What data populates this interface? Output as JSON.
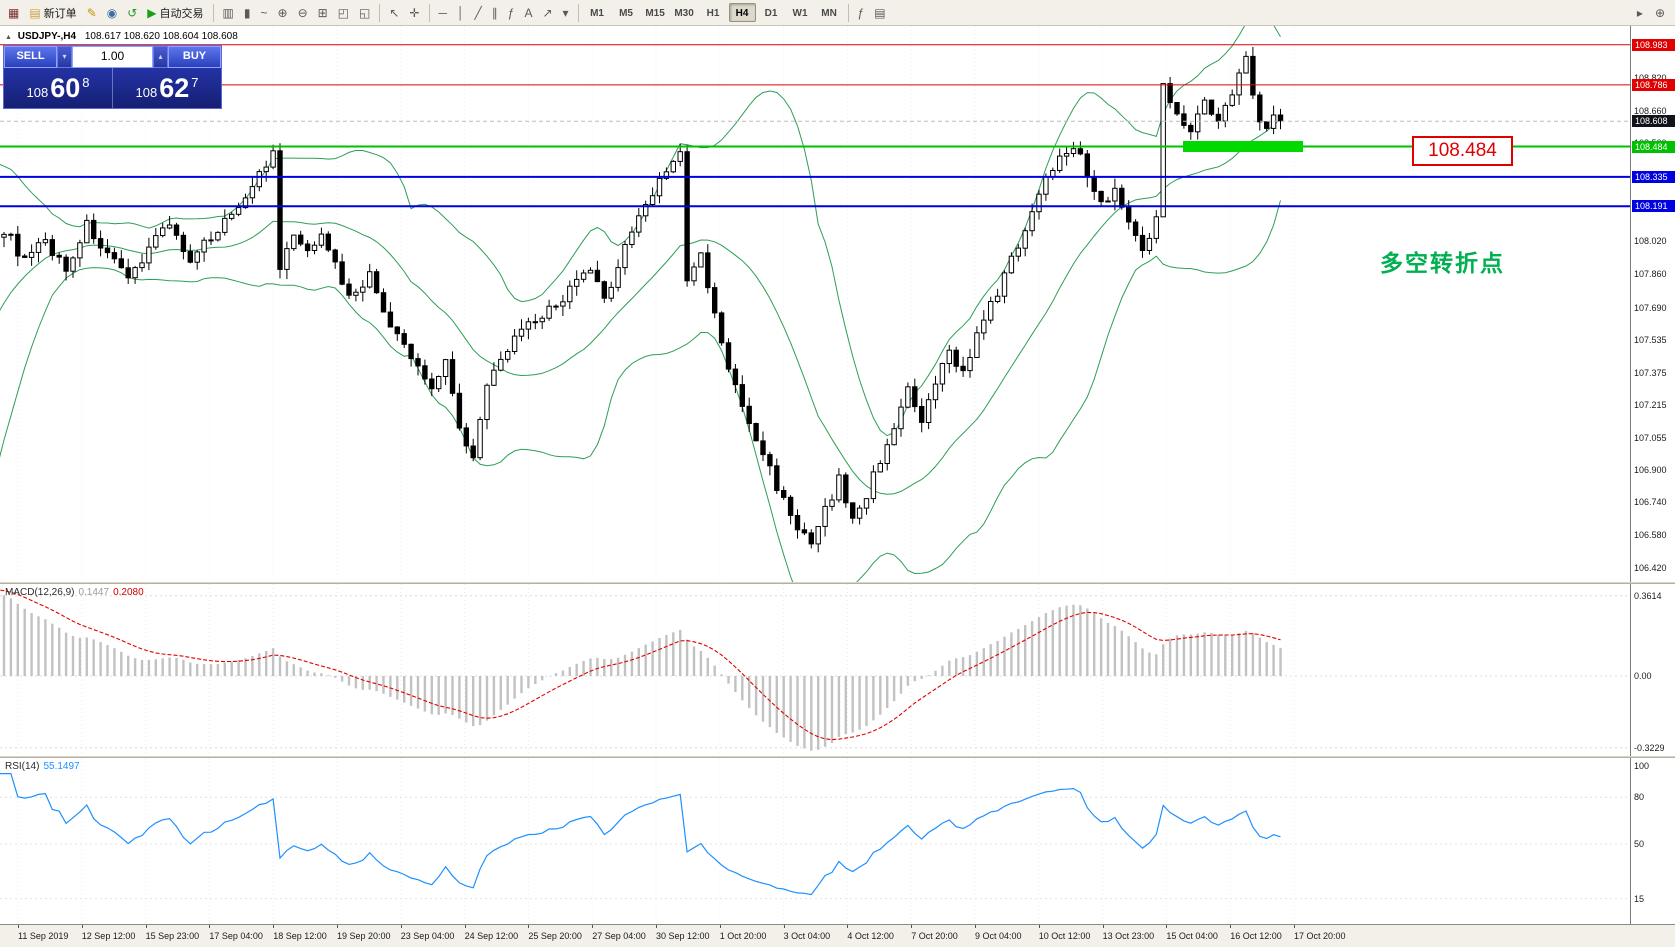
{
  "toolbar": {
    "items": [
      {
        "t": "icon",
        "name": "new-chart-icon",
        "g": "▦",
        "gc": "#7a2f2f"
      },
      {
        "t": "btn",
        "name": "new-order-button",
        "g": "▤",
        "gc": "#caa23a",
        "label": "新订单"
      },
      {
        "t": "icon",
        "name": "metaeditor-icon",
        "g": "✎",
        "gc": "#c89000"
      },
      {
        "t": "icon",
        "name": "market-icon",
        "g": "◉",
        "gc": "#3a6ea5"
      },
      {
        "t": "icon",
        "name": "refresh-icon",
        "g": "↺",
        "gc": "#259925"
      },
      {
        "t": "btn",
        "name": "autotrade-button",
        "g": "▶",
        "gc": "#18a018",
        "label": "自动交易"
      },
      {
        "t": "sep"
      },
      {
        "t": "icon",
        "name": "bar-chart-type-icon",
        "g": "▥"
      },
      {
        "t": "icon",
        "name": "candlestick-type-icon",
        "g": "▮"
      },
      {
        "t": "icon",
        "name": "line-chart-type-icon",
        "g": "~"
      },
      {
        "t": "icon",
        "name": "zoom-in-icon",
        "g": "⊕"
      },
      {
        "t": "icon",
        "name": "zoom-out-icon",
        "g": "⊖"
      },
      {
        "t": "icon",
        "name": "tile-windows-icon",
        "g": "⊞"
      },
      {
        "t": "icon",
        "name": "cascade-windows-icon",
        "g": "◰"
      },
      {
        "t": "icon",
        "name": "arrange-windows-icon",
        "g": "◱"
      },
      {
        "t": "sep"
      },
      {
        "t": "icon",
        "name": "cursor-icon",
        "g": "↖"
      },
      {
        "t": "icon",
        "name": "crosshair-icon",
        "g": "✛"
      },
      {
        "t": "sep"
      },
      {
        "t": "icon",
        "name": "hline-tool-icon",
        "g": "─"
      },
      {
        "t": "icon",
        "name": "vline-tool-icon",
        "g": "│"
      },
      {
        "t": "icon",
        "name": "trendline-tool-icon",
        "g": "╱"
      },
      {
        "t": "icon",
        "name": "channel-tool-icon",
        "g": "∥"
      },
      {
        "t": "icon",
        "name": "fibonacci-tool-icon",
        "g": "ƒ"
      },
      {
        "t": "icon",
        "name": "text-tool-icon",
        "g": "A"
      },
      {
        "t": "icon",
        "name": "arrow-tool-icon",
        "g": "↗"
      },
      {
        "t": "icon",
        "name": "shapes-dropdown-icon",
        "g": "▾"
      },
      {
        "t": "sep"
      },
      {
        "t": "tf",
        "label": "M1"
      },
      {
        "t": "tf",
        "label": "M5"
      },
      {
        "t": "tf",
        "label": "M15"
      },
      {
        "t": "tf",
        "label": "M30"
      },
      {
        "t": "tf",
        "label": "H1"
      },
      {
        "t": "tf",
        "label": "H4"
      },
      {
        "t": "tf",
        "label": "D1"
      },
      {
        "t": "tf",
        "label": "W1"
      },
      {
        "t": "tf",
        "label": "MN"
      },
      {
        "t": "sep"
      },
      {
        "t": "icon",
        "name": "indicators-icon",
        "g": "ƒ"
      },
      {
        "t": "icon",
        "name": "templates-icon",
        "g": "▤"
      }
    ],
    "active_timeframe": "H4",
    "right_items": [
      {
        "name": "toolbar-options-icon",
        "g": "▸"
      },
      {
        "name": "search-icon",
        "g": "⊕"
      }
    ]
  },
  "chart": {
    "collapse_glyph": "▲",
    "title": "USDJPY-,H4",
    "ohlc": "108.617 108.620 108.604 108.608",
    "trade_panel": {
      "sell_label": "SELL",
      "buy_label": "BUY",
      "volume": "1.00",
      "volume_down_glyph": "▾",
      "volume_up_glyph": "▴",
      "sell_prefix": "108",
      "sell_big": "60",
      "sell_sup": "8",
      "buy_prefix": "108",
      "buy_big": "62",
      "buy_sup": "7"
    },
    "hlines": [
      {
        "price": 108.983,
        "label": "108.983",
        "color": "#e00000",
        "width": 1
      },
      {
        "price": 108.786,
        "label": "108.786",
        "color": "#e00000",
        "width": 1
      },
      {
        "price": 108.484,
        "label": "108.484",
        "color": "#00c000",
        "width": 2
      },
      {
        "price": 108.335,
        "label": "108.335",
        "color": "#0000e0",
        "width": 2
      },
      {
        "price": 108.191,
        "label": "108.191",
        "color": "#0000e0",
        "width": 2
      }
    ],
    "current_price": {
      "label": "108.608",
      "price": 108.608,
      "color": "#10131a"
    },
    "axis_plain_labels": [
      "108.820",
      "108.660",
      "108.500",
      "108.340",
      "108.180",
      "108.020",
      "107.860",
      "107.690",
      "107.535",
      "107.375",
      "107.215",
      "107.055",
      "106.900",
      "106.740",
      "106.580",
      "106.420"
    ],
    "annotation_price": "108.484",
    "annotation_price_color": "#e00000",
    "annotation_text": "多空转折点",
    "annotation_text_color": "#00af50",
    "highlight_color": "#00d800"
  },
  "chart_data": {
    "type": "candlestick",
    "symbol": "USDJPY-",
    "timeframe": "H4",
    "visible_bars": 186,
    "price_waypoints": [
      [
        -45,
        105.9
      ],
      [
        -30,
        106.3
      ],
      [
        -20,
        106.9
      ],
      [
        -12,
        107.7
      ],
      [
        -6,
        108.0
      ],
      [
        0,
        108.08
      ],
      [
        3,
        107.92
      ],
      [
        6,
        108.02
      ],
      [
        9,
        107.88
      ],
      [
        12,
        108.1
      ],
      [
        15,
        107.95
      ],
      [
        18,
        107.82
      ],
      [
        21,
        108.0
      ],
      [
        24,
        108.12
      ],
      [
        27,
        107.9
      ],
      [
        30,
        108.05
      ],
      [
        33,
        108.15
      ],
      [
        36,
        108.3
      ],
      [
        39,
        108.44
      ],
      [
        40,
        107.88
      ],
      [
        42,
        108.05
      ],
      [
        44,
        107.95
      ],
      [
        46,
        108.08
      ],
      [
        48,
        107.9
      ],
      [
        50,
        107.75
      ],
      [
        53,
        107.85
      ],
      [
        56,
        107.6
      ],
      [
        59,
        107.45
      ],
      [
        62,
        107.3
      ],
      [
        64,
        107.45
      ],
      [
        66,
        107.1
      ],
      [
        68,
        106.98
      ],
      [
        70,
        107.3
      ],
      [
        73,
        107.5
      ],
      [
        76,
        107.6
      ],
      [
        79,
        107.68
      ],
      [
        82,
        107.78
      ],
      [
        85,
        107.88
      ],
      [
        87,
        107.72
      ],
      [
        90,
        108.0
      ],
      [
        93,
        108.2
      ],
      [
        96,
        108.38
      ],
      [
        98,
        108.44
      ],
      [
        99,
        107.82
      ],
      [
        101,
        107.95
      ],
      [
        103,
        107.65
      ],
      [
        105,
        107.4
      ],
      [
        107,
        107.2
      ],
      [
        109,
        107.05
      ],
      [
        111,
        106.9
      ],
      [
        113,
        106.75
      ],
      [
        115,
        106.62
      ],
      [
        117,
        106.52
      ],
      [
        119,
        106.7
      ],
      [
        121,
        106.85
      ],
      [
        123,
        106.65
      ],
      [
        125,
        106.78
      ],
      [
        127,
        106.95
      ],
      [
        129,
        107.12
      ],
      [
        131,
        107.28
      ],
      [
        133,
        107.12
      ],
      [
        135,
        107.32
      ],
      [
        137,
        107.48
      ],
      [
        139,
        107.38
      ],
      [
        141,
        107.55
      ],
      [
        143,
        107.7
      ],
      [
        145,
        107.85
      ],
      [
        147,
        108.0
      ],
      [
        149,
        108.18
      ],
      [
        151,
        108.32
      ],
      [
        153,
        108.45
      ],
      [
        155,
        108.5
      ],
      [
        157,
        108.35
      ],
      [
        159,
        108.2
      ],
      [
        161,
        108.28
      ],
      [
        163,
        108.1
      ],
      [
        165,
        108.0
      ],
      [
        167,
        108.12
      ],
      [
        168,
        108.78
      ],
      [
        170,
        108.66
      ],
      [
        172,
        108.56
      ],
      [
        174,
        108.7
      ],
      [
        176,
        108.6
      ],
      [
        178,
        108.74
      ],
      [
        180,
        108.95
      ],
      [
        181,
        108.76
      ],
      [
        182,
        108.63
      ],
      [
        183,
        108.56
      ],
      [
        184,
        108.64
      ],
      [
        185,
        108.61
      ]
    ],
    "time_labels": [
      "11 Sep 2019",
      "12 Sep 12:00",
      "15 Sep 23:00",
      "17 Sep 04:00",
      "18 Sep 12:00",
      "19 Sep 20:00",
      "23 Sep 04:00",
      "24 Sep 12:00",
      "25 Sep 20:00",
      "27 Sep 04:00",
      "30 Sep 12:00",
      "1 Oct 20:00",
      "3 Oct 04:00",
      "4 Oct 12:00",
      "7 Oct 20:00",
      "9 Oct 04:00",
      "10 Oct 12:00",
      "13 Oct 23:00",
      "15 Oct 04:00",
      "16 Oct 12:00",
      "17 Oct 20:00"
    ],
    "indicators": [
      {
        "name": "Bollinger Bands",
        "settings": "(20,2)",
        "color": "#2e9e55"
      },
      {
        "name": "MACD",
        "settings": "(12,26,9)",
        "values": [
          "0.1447",
          "0.2080"
        ],
        "hist_color": "#c2c2c2",
        "signal_color": "#e00000"
      },
      {
        "name": "RSI",
        "settings": "(14)",
        "value": "55.1497",
        "color": "#1e90ff"
      }
    ]
  },
  "macd_panel": {
    "label": "MACD(12,26,9)",
    "value1": "0.1447",
    "value2": "0.2080",
    "axis": [
      {
        "label": "0.3614",
        "v": 0.3614
      },
      {
        "label": "0.00",
        "v": 0
      },
      {
        "label": "-0.3229",
        "v": -0.3229
      }
    ]
  },
  "rsi_panel": {
    "label": "RSI(14)",
    "value": "55.1497",
    "axis": [
      {
        "label": "100",
        "v": 100
      },
      {
        "label": "80",
        "v": 80
      },
      {
        "label": "50",
        "v": 50
      },
      {
        "label": "15",
        "v": 15
      }
    ]
  }
}
